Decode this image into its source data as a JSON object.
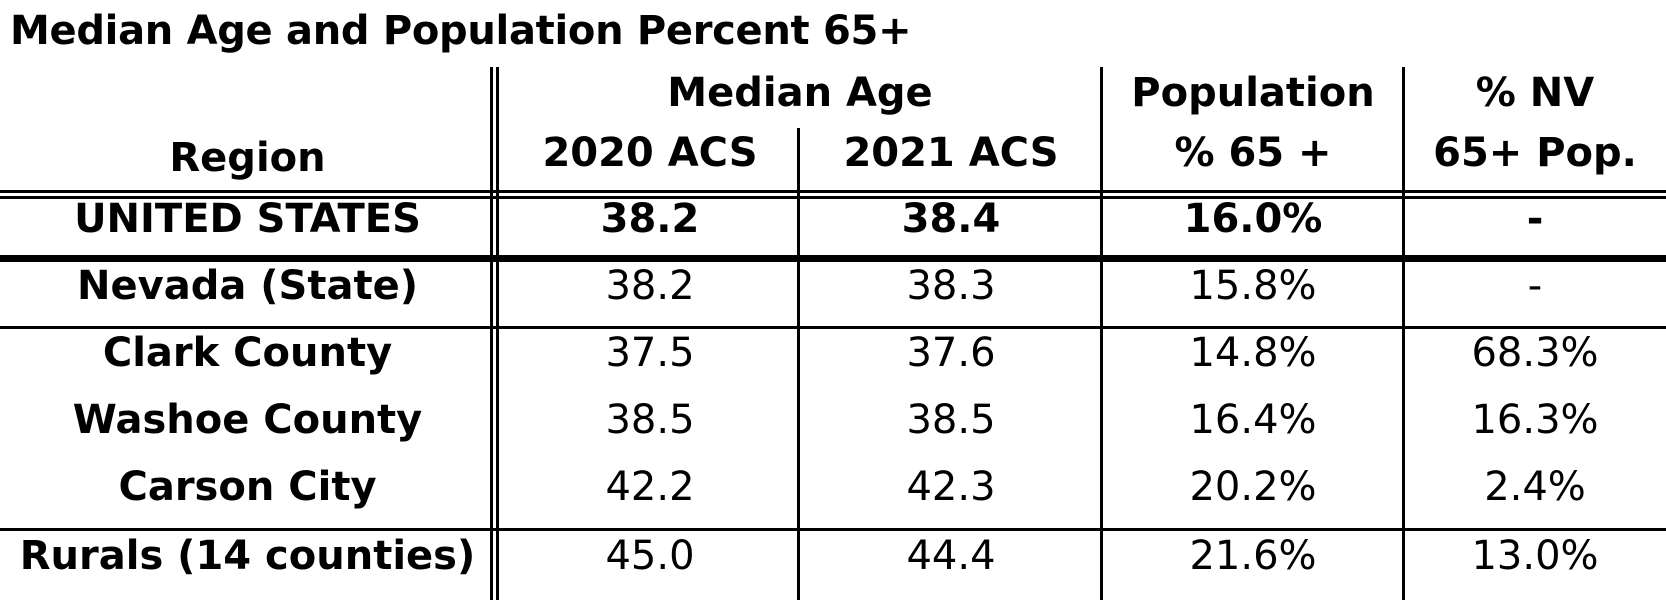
{
  "title": "Median Age and Population Percent 65+",
  "headers": {
    "region": "Region",
    "median_age": "Median Age",
    "acs2020": "2020 ACS",
    "acs2021": "2021 ACS",
    "population_line1": "Population",
    "population_line2": "% 65 +",
    "nv_line1": "% NV",
    "nv_line2": "65+ Pop."
  },
  "rows": [
    {
      "region": "UNITED STATES",
      "acs2020": "38.2",
      "acs2021": "38.4",
      "pct65": "16.0%",
      "nv65": "-"
    },
    {
      "region": "Nevada (State)",
      "acs2020": "38.2",
      "acs2021": "38.3",
      "pct65": "15.8%",
      "nv65": "-"
    },
    {
      "region": "Clark County",
      "acs2020": "37.5",
      "acs2021": "37.6",
      "pct65": "14.8%",
      "nv65": "68.3%"
    },
    {
      "region": "Washoe County",
      "acs2020": "38.5",
      "acs2021": "38.5",
      "pct65": "16.4%",
      "nv65": "16.3%"
    },
    {
      "region": "Carson City",
      "acs2020": "42.2",
      "acs2021": "42.3",
      "pct65": "20.2%",
      "nv65": "2.4%"
    },
    {
      "region": "Rurals (14 counties)",
      "acs2020": "45.0",
      "acs2021": "44.4",
      "pct65": "21.6%",
      "nv65": "13.0%"
    }
  ]
}
